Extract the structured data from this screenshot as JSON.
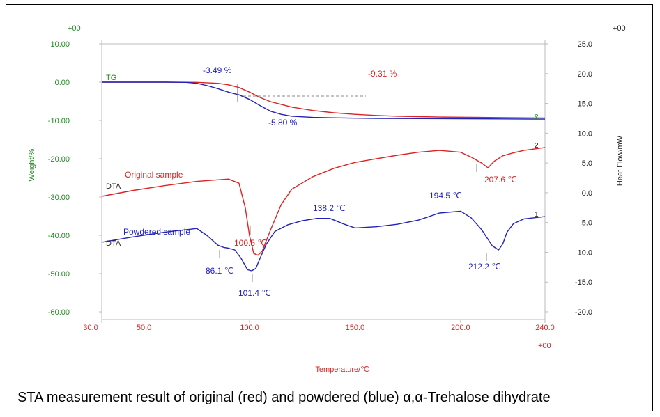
{
  "caption": "STA measurement result of original (red) and powdered (blue) α,α-Trehalose dihydrate",
  "colors": {
    "red": "#dd2222",
    "blue": "#2222bb",
    "green": "#228822",
    "gray": "#999999",
    "black": "#222222"
  },
  "chart_data": {
    "type": "line",
    "xlabel": "Temperature/℃",
    "ylabel_left": "Weight/%",
    "ylabel_right": "Heat Flow/mW",
    "x_ticks": [
      "30.0",
      "50.0",
      "100.0",
      "150.0",
      "200.0",
      "240.0"
    ],
    "y_left_ticks": [
      "10.00",
      "0.00",
      "-10.00",
      "-20.00",
      "-30.00",
      "-40.00",
      "-50.00",
      "-60.00"
    ],
    "y_right_ticks": [
      "25.0",
      "20.0",
      "15.0",
      "10.0",
      "5.0",
      "0.0",
      "-5.0",
      "-10.0",
      "-15.0",
      "-20.0"
    ],
    "offset_labels": {
      "left_top": "+00",
      "right_top": "+00",
      "bottom_right": "+00"
    },
    "curve_labels": {
      "tg": "TG",
      "dta_original": "DTA",
      "dta_powdered": "DTA",
      "num_2_tg": "2",
      "num_1_tg": "1",
      "num_2_dta": "2",
      "num_1_dta": "1"
    },
    "series": [
      {
        "name": "Original sample",
        "kind": "DTA",
        "axis": "right",
        "color": "red",
        "x": [
          30,
          45,
          60,
          75,
          90,
          95,
          98,
          100,
          102,
          104,
          106,
          110,
          115,
          120,
          130,
          140,
          150,
          160,
          170,
          180,
          190,
          200,
          205,
          210,
          213,
          216,
          220,
          225,
          230,
          240
        ],
        "y": [
          -0.6,
          0.4,
          1.2,
          1.9,
          2.3,
          1.6,
          -2.5,
          -7.2,
          -10.2,
          -10.5,
          -9.8,
          -6.2,
          -2.0,
          0.6,
          2.7,
          4.1,
          5.1,
          5.7,
          6.3,
          6.8,
          7.1,
          6.8,
          6.0,
          5.0,
          4.2,
          5.3,
          6.2,
          6.7,
          7.1,
          7.6
        ]
      },
      {
        "name": "Powdered sample",
        "kind": "DTA",
        "axis": "right",
        "color": "blue",
        "x": [
          30,
          45,
          60,
          75,
          80,
          85,
          88,
          90,
          93,
          96,
          99,
          101,
          103,
          105,
          108,
          112,
          118,
          125,
          132,
          138,
          145,
          150,
          160,
          170,
          180,
          190,
          200,
          205,
          210,
          215,
          218,
          220,
          222,
          225,
          230,
          240
        ],
        "y": [
          -8.3,
          -7.4,
          -6.6,
          -6.0,
          -7.2,
          -8.8,
          -9.2,
          -9.3,
          -9.6,
          -11.0,
          -12.9,
          -13.1,
          -12.7,
          -11.0,
          -8.6,
          -6.5,
          -5.4,
          -4.7,
          -4.3,
          -4.3,
          -5.3,
          -5.9,
          -5.7,
          -5.3,
          -4.6,
          -3.4,
          -3.1,
          -4.2,
          -6.2,
          -8.9,
          -9.6,
          -8.6,
          -6.6,
          -5.2,
          -4.4,
          -4.0
        ]
      },
      {
        "name": "Original sample TG",
        "kind": "TG",
        "axis": "left",
        "color": "red",
        "x": [
          30,
          60,
          75,
          85,
          90,
          95,
          100,
          105,
          110,
          120,
          130,
          140,
          150,
          160,
          170,
          180,
          190,
          200,
          210,
          220,
          230,
          240
        ],
        "y": [
          0.0,
          0.0,
          -0.05,
          -0.3,
          -0.7,
          -1.4,
          -2.6,
          -4.0,
          -5.1,
          -6.5,
          -7.4,
          -8.0,
          -8.4,
          -8.7,
          -8.9,
          -9.0,
          -9.1,
          -9.15,
          -9.2,
          -9.25,
          -9.3,
          -9.35
        ]
      },
      {
        "name": "Powdered sample TG",
        "kind": "TG",
        "axis": "left",
        "color": "blue",
        "x": [
          30,
          60,
          70,
          75,
          80,
          85,
          90,
          95,
          100,
          105,
          110,
          115,
          120,
          130,
          140,
          150,
          160,
          180,
          200,
          220,
          240
        ],
        "y": [
          0.0,
          0.0,
          -0.05,
          -0.3,
          -0.9,
          -1.7,
          -2.6,
          -3.3,
          -4.5,
          -6.1,
          -7.6,
          -8.4,
          -8.9,
          -9.2,
          -9.3,
          -9.4,
          -9.45,
          -9.5,
          -9.55,
          -9.6,
          -9.65
        ]
      }
    ],
    "annotations": {
      "tg_blue_step": "-3.49 %",
      "tg_blue_total": "-5.80 %",
      "tg_red_total": "-9.31 %",
      "peak_red_1": "100.5 ℃",
      "peak_red_2": "207.6 ℃",
      "peak_blue_1": "86.1 ℃",
      "peak_blue_2": "101.4 ℃",
      "peak_blue_3": "138.2 ℃",
      "peak_blue_4": "194.5 ℃",
      "peak_blue_5": "212.2 ℃",
      "legend_original": "Original sample",
      "legend_powdered": "Powdered sample"
    },
    "xlim": [
      30,
      240
    ],
    "ylim_left": [
      -60,
      10
    ],
    "ylim_right": [
      -20,
      25
    ],
    "grid": false
  }
}
